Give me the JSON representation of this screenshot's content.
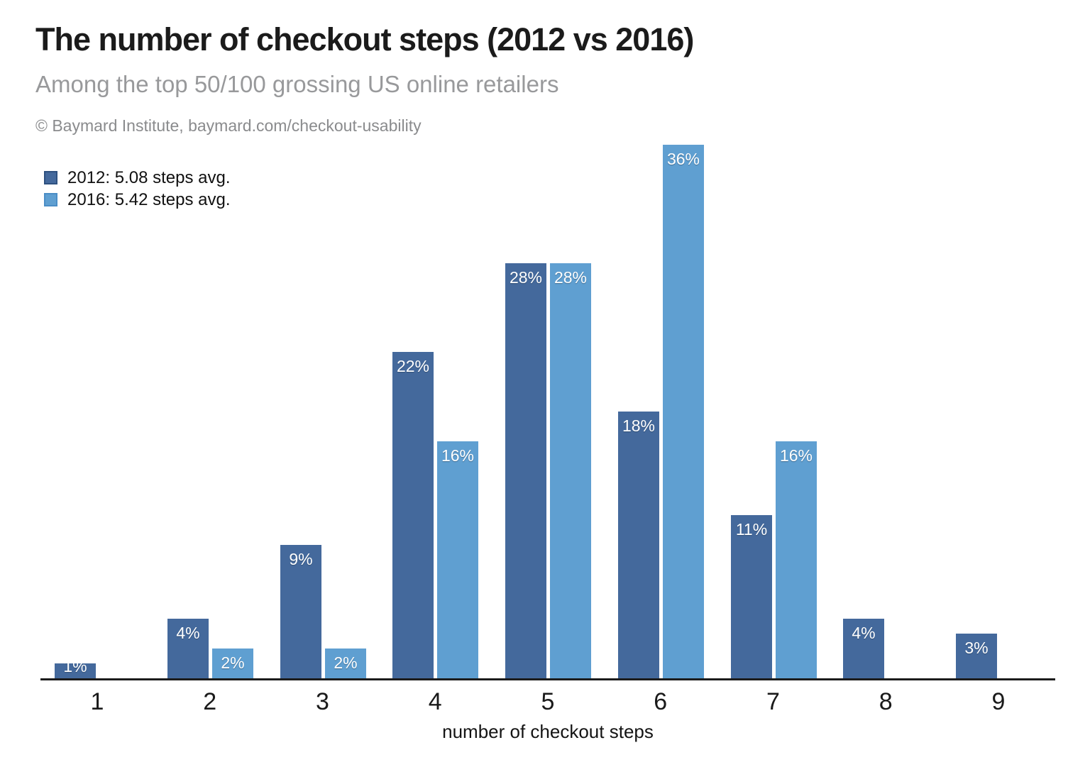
{
  "chart_data": {
    "type": "bar",
    "title": "The number of checkout steps (2012 vs 2016)",
    "subtitle": "Among the top 50/100 grossing US online retailers",
    "attribution": "© Baymard Institute, baymard.com/checkout-usability",
    "xlabel": "number of checkout steps",
    "categories": [
      "1",
      "2",
      "3",
      "4",
      "5",
      "6",
      "7",
      "8",
      "9"
    ],
    "series": [
      {
        "name": "2012",
        "legend_label": "2012: 5.08 steps avg.",
        "color": "#44699c",
        "swatch_border": "#2e5180",
        "values": [
          1,
          4,
          9,
          22,
          28,
          18,
          11,
          4,
          3
        ]
      },
      {
        "name": "2016",
        "legend_label": "2016: 5.42 steps avg.",
        "color": "#5f9fd1",
        "swatch_border": "#4b8ec6",
        "values": [
          0,
          2,
          2,
          16,
          28,
          36,
          16,
          0,
          0
        ]
      }
    ],
    "value_suffix": "%",
    "bar_labels_shown": true,
    "ylim": [
      0,
      38
    ],
    "grid": false,
    "y_axis_shown": false,
    "legend_position": "top-left",
    "colors": {
      "bar_label": "#ffffff",
      "axis": "#1c1c1c",
      "title": "#1b1b1b",
      "subtitle": "#98999b",
      "attribution": "#8a8b8d",
      "tick_label": "#1a1a1a"
    }
  }
}
